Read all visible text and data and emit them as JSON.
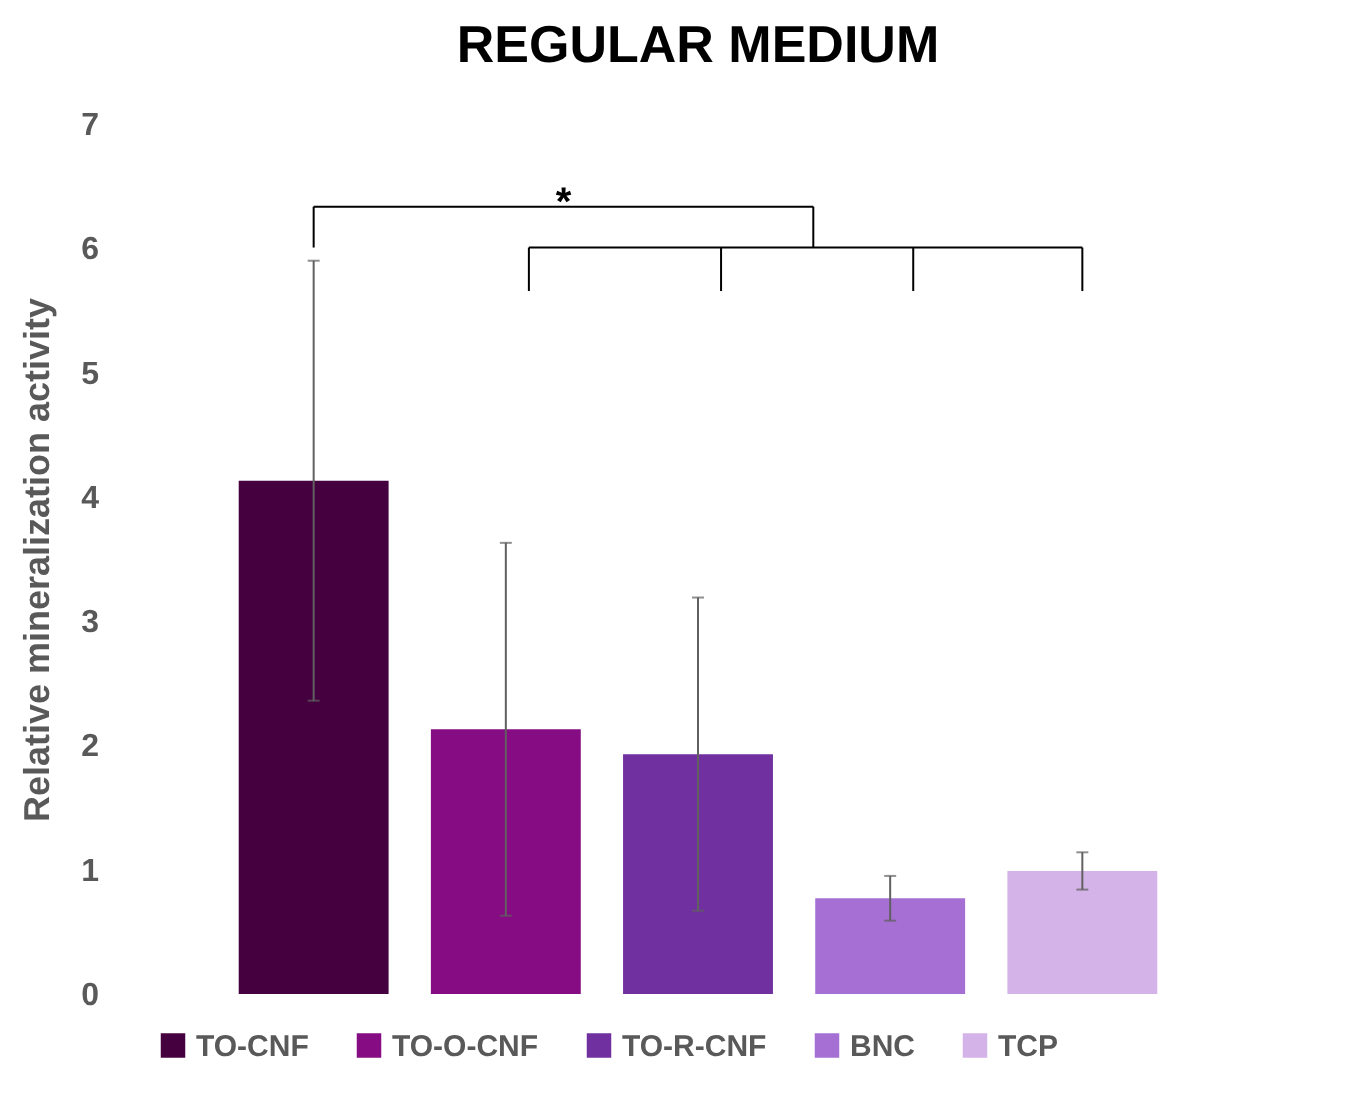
{
  "chart_data": {
    "type": "bar",
    "title": "REGULAR MEDIUM",
    "ylabel": "Relative mineralization activity",
    "categories": [
      null
    ],
    "series": [
      {
        "name": "TO-CNF",
        "color": "#45003f",
        "values": [
          4.13
        ],
        "errors": [
          1.77
        ]
      },
      {
        "name": "TO-O-CNF",
        "color": "#850c82",
        "values": [
          2.13
        ],
        "errors": [
          1.5
        ]
      },
      {
        "name": "TO-R-CNF",
        "color": "#7030a0",
        "values": [
          1.93
        ],
        "errors": [
          1.26
        ]
      },
      {
        "name": "BNC",
        "color": "#a66fd4",
        "values": [
          0.77
        ],
        "errors": [
          0.18
        ]
      },
      {
        "name": "TCP",
        "color": "#d3b3e8",
        "values": [
          0.99
        ],
        "errors": [
          0.15
        ]
      }
    ],
    "ylim": [
      0,
      7
    ],
    "yticks": [
      0,
      1,
      2,
      3,
      4,
      5,
      6,
      7
    ],
    "grid": false,
    "legend": "bottom",
    "tick_labels": "y",
    "annotations": [
      "*"
    ]
  }
}
